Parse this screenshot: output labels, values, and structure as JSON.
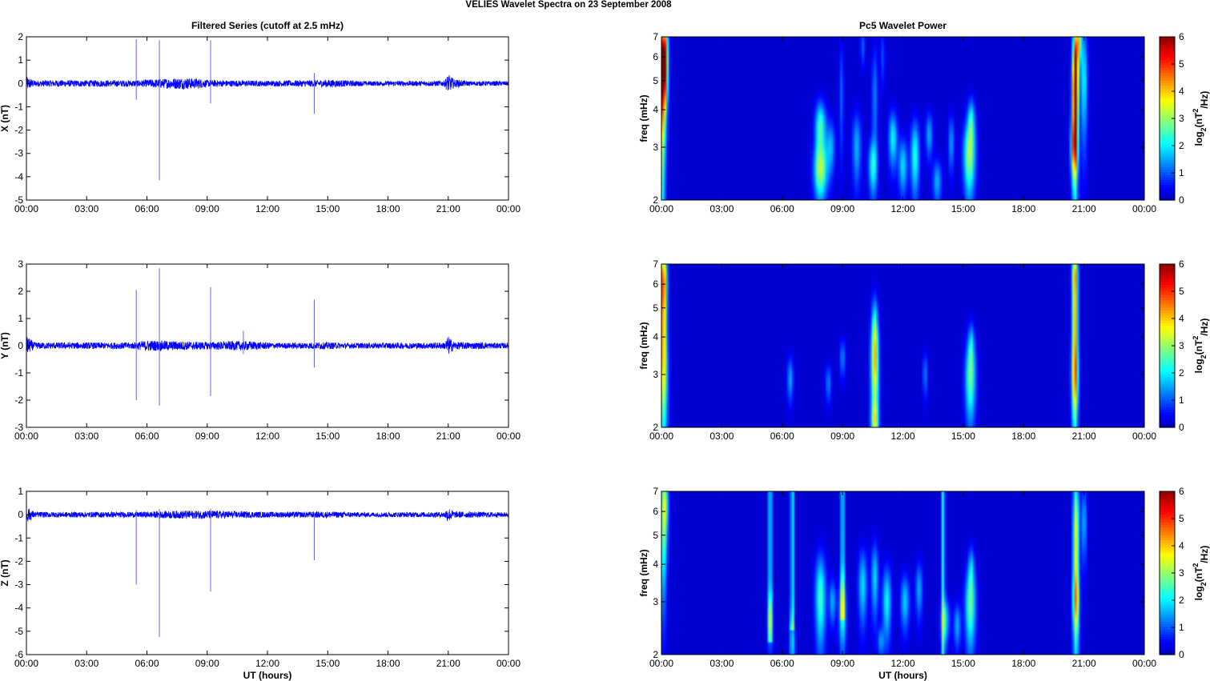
{
  "figure": {
    "title": "VELIES Wavelet Spectra on 23 September 2008"
  },
  "chart_data": [
    {
      "type": "line",
      "title": "Filtered Series (cutoff at 2.5 mHz)",
      "ylabel": "X (nT)",
      "xlabel": "",
      "xlim": [
        0,
        24
      ],
      "ylim": [
        -5,
        2
      ],
      "yticks": [
        "-5",
        "-4",
        "-3",
        "-2",
        "-1",
        "0",
        "1",
        "2"
      ],
      "xticks": [
        "00:00",
        "03:00",
        "06:00",
        "09:00",
        "12:00",
        "15:00",
        "18:00",
        "21:00",
        "00:00"
      ],
      "series_color": "#0000ff",
      "noise": [
        [
          0,
          0.3
        ],
        [
          0.4,
          0.14
        ],
        [
          5.5,
          0.14
        ],
        [
          7.7,
          0.25
        ],
        [
          8.6,
          0.22
        ],
        [
          9.0,
          0.15
        ],
        [
          12.0,
          0.12
        ],
        [
          14.0,
          0.14
        ],
        [
          15.0,
          0.17
        ],
        [
          17.0,
          0.1
        ],
        [
          20.8,
          0.12
        ],
        [
          21.0,
          0.4
        ],
        [
          21.3,
          0.18
        ],
        [
          22,
          0.1
        ],
        [
          24,
          0.1
        ]
      ],
      "spikes": [
        [
          5.47,
          1.9,
          -0.7
        ],
        [
          6.62,
          1.85,
          -4.15
        ],
        [
          9.17,
          1.85,
          -0.85
        ],
        [
          14.33,
          0.45,
          -1.3
        ]
      ]
    },
    {
      "type": "line",
      "title": "",
      "ylabel": "Y (nT)",
      "xlabel": "",
      "xlim": [
        0,
        24
      ],
      "ylim": [
        -3,
        3
      ],
      "yticks": [
        "-3",
        "-2",
        "-1",
        "0",
        "1",
        "2",
        "3"
      ],
      "xticks": [
        "00:00",
        "03:00",
        "06:00",
        "09:00",
        "12:00",
        "15:00",
        "18:00",
        "21:00",
        "00:00"
      ],
      "series_color": "#0000ff",
      "noise": [
        [
          0,
          0.35
        ],
        [
          0.4,
          0.12
        ],
        [
          5.3,
          0.12
        ],
        [
          6.0,
          0.2
        ],
        [
          9.0,
          0.14
        ],
        [
          10.8,
          0.18
        ],
        [
          12.5,
          0.1
        ],
        [
          14.8,
          0.13
        ],
        [
          16,
          0.1
        ],
        [
          20.8,
          0.12
        ],
        [
          21.0,
          0.35
        ],
        [
          21.3,
          0.14
        ],
        [
          24,
          0.1
        ]
      ],
      "spikes": [
        [
          5.47,
          2.05,
          -2.0
        ],
        [
          6.62,
          2.85,
          -2.2
        ],
        [
          9.17,
          2.15,
          -1.85
        ],
        [
          14.33,
          1.7,
          -0.8
        ],
        [
          10.8,
          0.55,
          -0.3
        ]
      ]
    },
    {
      "type": "line",
      "title": "",
      "ylabel": "Z (nT)",
      "xlabel": "UT (hours)",
      "xlim": [
        0,
        24
      ],
      "ylim": [
        -6,
        1
      ],
      "yticks": [
        "-6",
        "-5",
        "-4",
        "-3",
        "-2",
        "-1",
        "0",
        "1"
      ],
      "xticks": [
        "00:00",
        "03:00",
        "06:00",
        "09:00",
        "12:00",
        "15:00",
        "18:00",
        "21:00",
        "00:00"
      ],
      "series_color": "#0000ff",
      "noise": [
        [
          0,
          0.35
        ],
        [
          0.4,
          0.12
        ],
        [
          5.5,
          0.12
        ],
        [
          8.0,
          0.18
        ],
        [
          9.2,
          0.18
        ],
        [
          12.0,
          0.12
        ],
        [
          15.0,
          0.14
        ],
        [
          17,
          0.1
        ],
        [
          20.8,
          0.12
        ],
        [
          21.0,
          0.32
        ],
        [
          21.3,
          0.14
        ],
        [
          24,
          0.1
        ]
      ],
      "spikes": [
        [
          5.47,
          0.2,
          -3.0
        ],
        [
          6.62,
          0.25,
          -5.25
        ],
        [
          9.17,
          0.25,
          -3.3
        ],
        [
          14.33,
          0.1,
          -1.95
        ]
      ]
    },
    {
      "type": "heatmap",
      "title": "Pc5 Wavelet Power",
      "ylabel": "freq (mHz)",
      "xlabel": "",
      "xlim": [
        0,
        24
      ],
      "ylim": [
        2,
        7
      ],
      "yscale": "log",
      "yticks": [
        "2",
        "3",
        "4",
        "5",
        "6",
        "7"
      ],
      "xticks": [
        "00:00",
        "03:00",
        "06:00",
        "09:00",
        "12:00",
        "15:00",
        "18:00",
        "21:00",
        "00:00"
      ],
      "colorbar": {
        "label_base": "log",
        "label_sub": "2",
        "label_open": "(nT",
        "label_sup": "2",
        "label_close": "/Hz)",
        "ticks": [
          "0",
          "1",
          "2",
          "3",
          "4",
          "5",
          "6"
        ],
        "range": [
          0,
          6
        ],
        "colormap": "jet"
      },
      "blobs": [
        [
          0.15,
          5.8,
          0.12,
          0.22,
          5.5
        ],
        [
          0.05,
          4.5,
          0.1,
          0.5,
          3.5
        ],
        [
          7.9,
          2.5,
          0.22,
          0.15,
          3.0
        ],
        [
          7.9,
          3.5,
          0.18,
          0.14,
          2.5
        ],
        [
          8.4,
          3.0,
          0.15,
          0.15,
          1.5
        ],
        [
          9.7,
          3.0,
          0.15,
          0.2,
          1.5
        ],
        [
          10.5,
          2.6,
          0.15,
          0.15,
          2.0
        ],
        [
          10.6,
          4.4,
          0.1,
          0.3,
          1.2
        ],
        [
          11.5,
          3.2,
          0.15,
          0.15,
          2.0
        ],
        [
          12.0,
          2.6,
          0.15,
          0.15,
          1.8
        ],
        [
          12.6,
          2.8,
          0.15,
          0.2,
          2.2
        ],
        [
          13.3,
          3.3,
          0.12,
          0.12,
          1.5
        ],
        [
          13.7,
          2.3,
          0.15,
          0.12,
          1.5
        ],
        [
          14.4,
          3.1,
          0.1,
          0.15,
          1.4
        ],
        [
          15.3,
          2.8,
          0.2,
          0.2,
          3.0
        ],
        [
          15.4,
          3.7,
          0.12,
          0.12,
          1.8
        ],
        [
          20.55,
          4.2,
          0.1,
          0.35,
          5.0
        ],
        [
          20.6,
          5.8,
          0.1,
          0.25,
          3.5
        ],
        [
          20.5,
          3.0,
          0.12,
          0.15,
          2.5
        ],
        [
          21.0,
          5.0,
          0.12,
          0.3,
          2.0
        ],
        [
          20.75,
          6.8,
          0.1,
          0.1,
          2.5
        ],
        [
          10.0,
          6.5,
          0.08,
          0.1,
          1.0
        ],
        [
          8.95,
          4.5,
          0.08,
          0.3,
          1.0
        ],
        [
          11.0,
          6.0,
          0.08,
          0.15,
          0.8
        ]
      ]
    },
    {
      "type": "heatmap",
      "title": "",
      "ylabel": "freq (mHz)",
      "xlabel": "",
      "xlim": [
        0,
        24
      ],
      "ylim": [
        2,
        7
      ],
      "yscale": "log",
      "yticks": [
        "2",
        "3",
        "4",
        "5",
        "6",
        "7"
      ],
      "xticks": [
        "00:00",
        "03:00",
        "06:00",
        "09:00",
        "12:00",
        "15:00",
        "18:00",
        "21:00",
        "00:00"
      ],
      "colorbar": {
        "label_base": "log",
        "label_sub": "2",
        "label_open": "(nT",
        "label_sup": "2",
        "label_close": "/Hz)",
        "ticks": [
          "0",
          "1",
          "2",
          "3",
          "4",
          "5",
          "6"
        ],
        "range": [
          0,
          6
        ],
        "colormap": "jet"
      },
      "blobs": [
        [
          0.1,
          6.0,
          0.12,
          0.22,
          5.0
        ],
        [
          0.1,
          2.8,
          0.15,
          0.3,
          2.8
        ],
        [
          0.1,
          4.0,
          0.1,
          0.2,
          1.8
        ],
        [
          6.4,
          2.9,
          0.1,
          0.12,
          1.5
        ],
        [
          8.3,
          2.8,
          0.1,
          0.1,
          1.2
        ],
        [
          9.0,
          3.4,
          0.1,
          0.1,
          1.2
        ],
        [
          10.6,
          3.1,
          0.14,
          0.3,
          3.2
        ],
        [
          10.6,
          2.1,
          0.12,
          0.1,
          2.0
        ],
        [
          10.6,
          4.2,
          0.1,
          0.2,
          1.8
        ],
        [
          13.1,
          3.0,
          0.08,
          0.12,
          1.2
        ],
        [
          15.35,
          2.9,
          0.18,
          0.22,
          2.6
        ],
        [
          15.4,
          3.8,
          0.1,
          0.12,
          1.3
        ],
        [
          20.55,
          4.6,
          0.1,
          0.4,
          4.2
        ],
        [
          20.55,
          2.9,
          0.12,
          0.2,
          2.2
        ],
        [
          20.55,
          6.6,
          0.1,
          0.1,
          2.0
        ]
      ]
    },
    {
      "type": "heatmap",
      "title": "",
      "ylabel": "freq (mHz)",
      "xlabel": "UT (hours)",
      "xlim": [
        0,
        24
      ],
      "ylim": [
        2,
        7
      ],
      "yscale": "log",
      "yticks": [
        "2",
        "3",
        "4",
        "5",
        "6",
        "7"
      ],
      "xticks": [
        "00:00",
        "03:00",
        "06:00",
        "09:00",
        "12:00",
        "15:00",
        "18:00",
        "21:00",
        "00:00"
      ],
      "colorbar": {
        "label_base": "log",
        "label_sub": "2",
        "label_open": "(nT",
        "label_sup": "2",
        "label_close": "/Hz)",
        "ticks": [
          "0",
          "1",
          "2",
          "3",
          "4",
          "5",
          "6"
        ],
        "range": [
          0,
          6
        ],
        "colormap": "jet"
      },
      "lines": [
        [
          5.4,
          2.2
        ],
        [
          6.5,
          2.4
        ],
        [
          9.0,
          2.6
        ],
        [
          14.0,
          2.0
        ]
      ],
      "blobs": [
        [
          0.15,
          6.3,
          0.12,
          0.2,
          3.5
        ],
        [
          0.1,
          4.0,
          0.1,
          0.3,
          1.5
        ],
        [
          5.4,
          2.6,
          0.1,
          0.15,
          1.8
        ],
        [
          6.5,
          2.2,
          0.1,
          0.15,
          1.8
        ],
        [
          9.0,
          2.8,
          0.12,
          0.2,
          2.4
        ],
        [
          7.9,
          3.1,
          0.18,
          0.25,
          2.4
        ],
        [
          8.5,
          3.0,
          0.12,
          0.12,
          1.5
        ],
        [
          10.0,
          3.4,
          0.15,
          0.2,
          1.8
        ],
        [
          10.6,
          3.6,
          0.12,
          0.2,
          1.8
        ],
        [
          11.2,
          3.0,
          0.15,
          0.2,
          2.0
        ],
        [
          12.1,
          3.0,
          0.15,
          0.15,
          1.7
        ],
        [
          12.8,
          3.3,
          0.12,
          0.15,
          1.5
        ],
        [
          14.1,
          2.6,
          0.15,
          0.12,
          1.8
        ],
        [
          14.7,
          2.5,
          0.12,
          0.12,
          1.5
        ],
        [
          15.35,
          2.9,
          0.18,
          0.22,
          2.6
        ],
        [
          15.4,
          3.9,
          0.1,
          0.12,
          1.3
        ],
        [
          20.6,
          4.7,
          0.1,
          0.45,
          3.8
        ],
        [
          20.6,
          3.0,
          0.12,
          0.15,
          2.0
        ],
        [
          21.0,
          5.5,
          0.1,
          0.2,
          1.5
        ],
        [
          10.9,
          2.2,
          0.1,
          0.08,
          1.3
        ]
      ]
    }
  ]
}
